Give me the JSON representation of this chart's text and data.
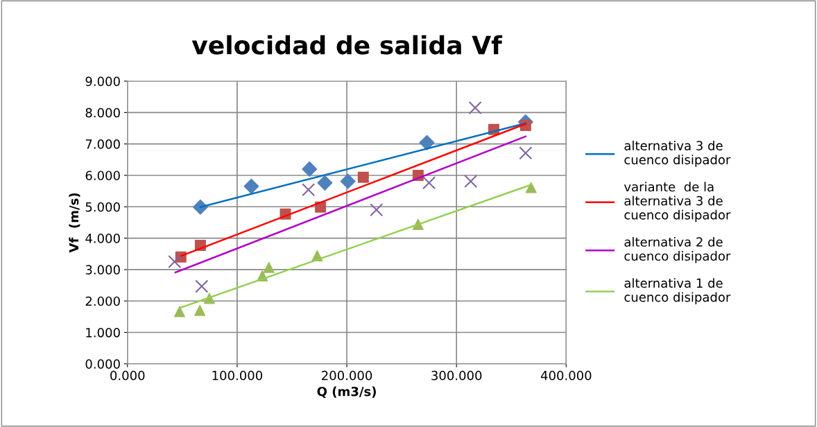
{
  "chart_data": {
    "type": "scatter",
    "title": "velocidad de salida Vf",
    "xlabel": "Q (m3/s)",
    "ylabel": "Vf  (m/s)",
    "xlim": [
      0,
      400
    ],
    "ylim": [
      0,
      9
    ],
    "xticks": [
      {
        "value": 0,
        "label": "0.000"
      },
      {
        "value": 100,
        "label": "100.000"
      },
      {
        "value": 200,
        "label": "200.000"
      },
      {
        "value": 300,
        "label": "300.000"
      },
      {
        "value": 400,
        "label": "400.000"
      }
    ],
    "yticks": [
      {
        "value": 0,
        "label": "0.000"
      },
      {
        "value": 1,
        "label": "1.000"
      },
      {
        "value": 2,
        "label": "2.000"
      },
      {
        "value": 3,
        "label": "3.000"
      },
      {
        "value": 4,
        "label": "4.000"
      },
      {
        "value": 5,
        "label": "5.000"
      },
      {
        "value": 6,
        "label": "6.000"
      },
      {
        "value": 7,
        "label": "7.000"
      },
      {
        "value": 8,
        "label": "8.000"
      },
      {
        "value": 9,
        "label": "9.000"
      }
    ],
    "grid": true,
    "legend": "right",
    "series": [
      {
        "marker": "diamond",
        "color": "#4f81bd",
        "x": [
          66.5,
          113,
          166,
          180,
          201,
          273,
          363
        ],
        "values": [
          4.99,
          5.65,
          6.2,
          5.76,
          5.81,
          7.04,
          7.7
        ]
      },
      {
        "marker": "square",
        "color": "#c0504d",
        "x": [
          48.7,
          66.5,
          144,
          176,
          215,
          265,
          334,
          363
        ],
        "values": [
          3.4,
          3.77,
          4.77,
          4.99,
          5.94,
          6.0,
          7.46,
          7.59
        ]
      },
      {
        "marker": "cross",
        "color": "#8064a2",
        "x": [
          43,
          67.7,
          165,
          227,
          275,
          313,
          317,
          363
        ],
        "values": [
          3.25,
          2.47,
          5.54,
          4.9,
          5.76,
          5.81,
          8.15,
          6.71
        ]
      },
      {
        "marker": "triangle",
        "color": "#9bbb59",
        "x": [
          47.5,
          66,
          74.7,
          123,
          129,
          173,
          265,
          368
        ],
        "values": [
          1.66,
          1.7,
          2.08,
          2.8,
          3.07,
          3.44,
          4.44,
          5.61
        ]
      },
      {
        "type": "line",
        "name": "alternativa 3 de\ncuenco disipador",
        "color": "#0070c0",
        "x": [
          66.5,
          363
        ],
        "values": [
          4.99,
          7.66
        ]
      },
      {
        "type": "line",
        "name": "variante  de la\nalternativa 3 de\ncuenco disipador",
        "color": "#ff0000",
        "x": [
          49.4,
          363
        ],
        "values": [
          3.44,
          7.64
        ]
      },
      {
        "type": "line",
        "name": "alternativa 2 de\ncuenco disipador",
        "color": "#b000c8",
        "x": [
          43.7,
          363
        ],
        "values": [
          2.91,
          7.24
        ]
      },
      {
        "type": "line",
        "name": "alternativa 1 de\ncuenco disipador",
        "color": "#92d050",
        "x": [
          48.7,
          368
        ],
        "values": [
          1.79,
          5.7
        ]
      }
    ]
  }
}
